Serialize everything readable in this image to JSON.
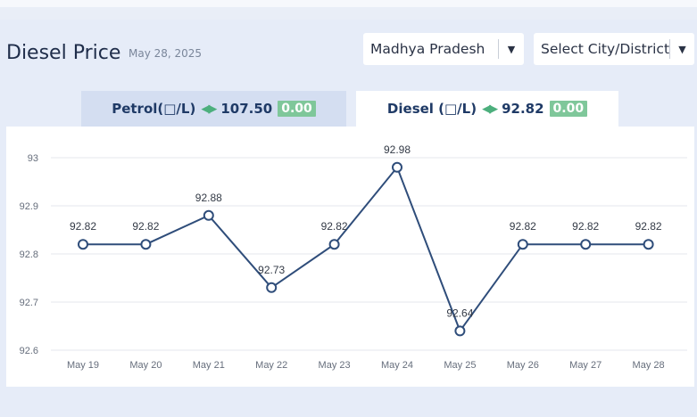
{
  "header": {
    "title": "Diesel Price",
    "date": "May 28, 2025"
  },
  "filters": {
    "state": "Madhya Pradesh",
    "city": "Select City/District"
  },
  "tabs": [
    {
      "label": "Petrol(□/L)",
      "price": "107.50",
      "change": "0.00",
      "active": false
    },
    {
      "label": "Diesel (□/L)",
      "price": "92.82",
      "change": "0.00",
      "active": true
    }
  ],
  "colors": {
    "line": "#2f4d7a",
    "change_badge": "#7fc79a",
    "arrows": "#4caf7d"
  },
  "chart_data": {
    "type": "line",
    "categories": [
      "May 19",
      "May 20",
      "May 21",
      "May 22",
      "May 23",
      "May 24",
      "May 25",
      "May 26",
      "May 27",
      "May 28"
    ],
    "values": [
      92.82,
      92.82,
      92.88,
      92.73,
      92.82,
      92.98,
      92.64,
      92.82,
      92.82,
      92.82
    ],
    "data_labels": [
      "92.82",
      "92.82",
      "92.88",
      "92.73",
      "92.82",
      "92.98",
      "92.64",
      "92.82",
      "92.82",
      "92.82"
    ],
    "yticks": [
      "92.6",
      "92.7",
      "92.8",
      "92.9",
      "93"
    ],
    "ylim": [
      92.6,
      93.0
    ],
    "grid": true,
    "legend": "none"
  }
}
